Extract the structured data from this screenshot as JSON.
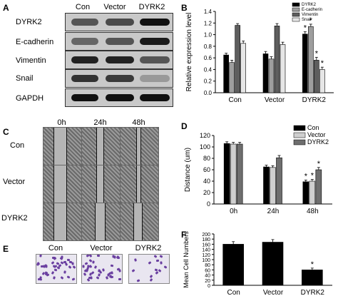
{
  "panels": {
    "a": {
      "label": "A",
      "columns": [
        "Con",
        "Vector",
        "DYRK2"
      ],
      "rows": [
        "DYRK2",
        "E-cadherin",
        "Vimentin",
        "Snail",
        "GAPDH"
      ]
    },
    "c": {
      "label": "C",
      "columns": [
        "0h",
        "24h",
        "48h"
      ],
      "rows": [
        "Con",
        "Vector",
        "DYRK2"
      ]
    },
    "e": {
      "label": "E",
      "columns": [
        "Con",
        "Vector",
        "DYRK2"
      ]
    },
    "b": {
      "label": "B"
    },
    "d": {
      "label": "D"
    },
    "f": {
      "label": "F"
    }
  },
  "chart_data": [
    {
      "id": "B",
      "type": "bar",
      "ylabel": "Relative expression level",
      "ylim": [
        0,
        1.4
      ],
      "yticks": [
        0.0,
        0.2,
        0.4,
        0.6,
        0.8,
        1.0,
        1.2,
        1.4
      ],
      "categories": [
        "Con",
        "Vector",
        "DYRK2"
      ],
      "series": [
        {
          "name": "DYRK2",
          "color": "#000000",
          "values": [
            0.65,
            0.67,
            1.01
          ],
          "errors": [
            0.03,
            0.04,
            0.04
          ],
          "sig": [
            false,
            false,
            true
          ]
        },
        {
          "name": "E-cadherin",
          "color": "#9e9e9e",
          "values": [
            0.52,
            0.58,
            1.14
          ],
          "errors": [
            0.04,
            0.04,
            0.04
          ],
          "sig": [
            false,
            false,
            true
          ]
        },
        {
          "name": "Vimentin",
          "color": "#5e5e5e",
          "values": [
            1.16,
            1.15,
            0.56
          ],
          "errors": [
            0.03,
            0.04,
            0.05
          ],
          "sig": [
            false,
            false,
            true
          ]
        },
        {
          "name": "Snail",
          "color": "#e6e6e6",
          "values": [
            0.85,
            0.83,
            0.4
          ],
          "errors": [
            0.04,
            0.04,
            0.04
          ],
          "sig": [
            false,
            false,
            true
          ]
        }
      ],
      "legend": "top-right",
      "annotation": "*"
    },
    {
      "id": "D",
      "type": "bar",
      "ylabel": "Distance (um)",
      "ylim": [
        0,
        120
      ],
      "yticks": [
        0,
        20,
        40,
        60,
        80,
        100,
        120
      ],
      "categories": [
        "0h",
        "24h",
        "48h"
      ],
      "series": [
        {
          "name": "Con",
          "color": "#000000",
          "values": [
            106,
            65,
            39
          ],
          "errors": [
            3,
            3,
            3
          ],
          "sig": [
            false,
            false,
            true
          ]
        },
        {
          "name": "Vector",
          "color": "#cfcfcf",
          "values": [
            105,
            64,
            40
          ],
          "errors": [
            3,
            3,
            3
          ],
          "sig": [
            false,
            false,
            true
          ]
        },
        {
          "name": "DYRK2",
          "color": "#6e6e6e",
          "values": [
            105,
            81,
            60
          ],
          "errors": [
            3,
            4,
            4
          ],
          "sig": [
            false,
            false,
            true
          ]
        }
      ],
      "legend": "top-right",
      "annotation": "*"
    },
    {
      "id": "F",
      "type": "bar",
      "ylabel": "Mean Cell Numbers",
      "ylim": [
        0,
        200
      ],
      "yticks": [
        0,
        20,
        40,
        60,
        80,
        100,
        120,
        140,
        160,
        180,
        200
      ],
      "categories": [
        "Con",
        "Vector",
        "DYRK2"
      ],
      "series": [
        {
          "name": "",
          "color": "#000000",
          "values": [
            160,
            168,
            60
          ],
          "errors": [
            10,
            10,
            7
          ],
          "sig": [
            false,
            false,
            true
          ]
        }
      ],
      "annotation": "*"
    }
  ]
}
